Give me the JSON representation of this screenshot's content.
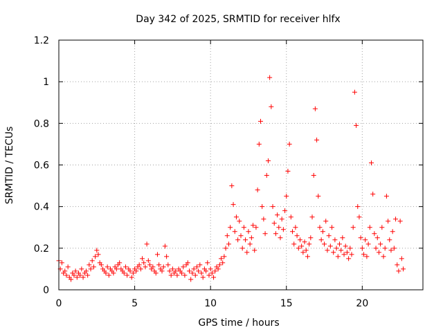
{
  "chart_data": {
    "type": "scatter",
    "title": "Day 342 of 2025, SRMTID for receiver hlfx",
    "xlabel": "GPS time / hours",
    "ylabel": "SRMTID / TECUs",
    "xlim": [
      0,
      24
    ],
    "ylim": [
      0,
      1.2
    ],
    "x_ticks": [
      0,
      5,
      10,
      15,
      20
    ],
    "x_tick_labels": [
      "0",
      "5",
      "10",
      "15",
      "20"
    ],
    "y_ticks": [
      0,
      0.2,
      0.4,
      0.6,
      0.8,
      1.0,
      1.2
    ],
    "y_tick_labels": [
      "0",
      "0.2",
      "0.4",
      "0.6",
      "0.8",
      "1",
      "1.2"
    ],
    "grid": true,
    "marker": "+",
    "color": "#ff0000",
    "series": [
      {
        "name": "SRMTID",
        "points": [
          [
            0.0,
            0.14
          ],
          [
            0.1,
            0.1
          ],
          [
            0.2,
            0.13
          ],
          [
            0.3,
            0.08
          ],
          [
            0.4,
            0.09
          ],
          [
            0.5,
            0.07
          ],
          [
            0.6,
            0.11
          ],
          [
            0.7,
            0.06
          ],
          [
            0.8,
            0.05
          ],
          [
            0.9,
            0.08
          ],
          [
            1.0,
            0.07
          ],
          [
            1.1,
            0.09
          ],
          [
            1.2,
            0.06
          ],
          [
            1.3,
            0.08
          ],
          [
            1.4,
            0.07
          ],
          [
            1.5,
            0.1
          ],
          [
            1.6,
            0.06
          ],
          [
            1.7,
            0.08
          ],
          [
            1.8,
            0.09
          ],
          [
            1.9,
            0.07
          ],
          [
            2.0,
            0.12
          ],
          [
            2.1,
            0.1
          ],
          [
            2.2,
            0.14
          ],
          [
            2.3,
            0.11
          ],
          [
            2.4,
            0.16
          ],
          [
            2.5,
            0.19
          ],
          [
            2.6,
            0.17
          ],
          [
            2.7,
            0.13
          ],
          [
            2.8,
            0.12
          ],
          [
            2.9,
            0.1
          ],
          [
            3.0,
            0.09
          ],
          [
            3.1,
            0.08
          ],
          [
            3.2,
            0.11
          ],
          [
            3.3,
            0.07
          ],
          [
            3.4,
            0.1
          ],
          [
            3.5,
            0.09
          ],
          [
            3.6,
            0.08
          ],
          [
            3.7,
            0.11
          ],
          [
            3.8,
            0.1
          ],
          [
            3.9,
            0.12
          ],
          [
            4.0,
            0.13
          ],
          [
            4.1,
            0.1
          ],
          [
            4.2,
            0.09
          ],
          [
            4.3,
            0.08
          ],
          [
            4.4,
            0.11
          ],
          [
            4.5,
            0.07
          ],
          [
            4.6,
            0.1
          ],
          [
            4.7,
            0.09
          ],
          [
            4.8,
            0.06
          ],
          [
            4.9,
            0.08
          ],
          [
            5.0,
            0.1
          ],
          [
            5.1,
            0.09
          ],
          [
            5.2,
            0.11
          ],
          [
            5.3,
            0.12
          ],
          [
            5.4,
            0.1
          ],
          [
            5.5,
            0.15
          ],
          [
            5.6,
            0.13
          ],
          [
            5.7,
            0.11
          ],
          [
            5.8,
            0.22
          ],
          [
            5.9,
            0.14
          ],
          [
            6.0,
            0.12
          ],
          [
            6.1,
            0.1
          ],
          [
            6.2,
            0.11
          ],
          [
            6.3,
            0.09
          ],
          [
            6.4,
            0.08
          ],
          [
            6.5,
            0.17
          ],
          [
            6.6,
            0.12
          ],
          [
            6.7,
            0.1
          ],
          [
            6.8,
            0.09
          ],
          [
            6.9,
            0.11
          ],
          [
            7.0,
            0.21
          ],
          [
            7.1,
            0.16
          ],
          [
            7.2,
            0.12
          ],
          [
            7.3,
            0.09
          ],
          [
            7.4,
            0.07
          ],
          [
            7.5,
            0.1
          ],
          [
            7.6,
            0.08
          ],
          [
            7.7,
            0.09
          ],
          [
            7.8,
            0.07
          ],
          [
            7.9,
            0.1
          ],
          [
            8.0,
            0.09
          ],
          [
            8.1,
            0.08
          ],
          [
            8.2,
            0.11
          ],
          [
            8.3,
            0.07
          ],
          [
            8.4,
            0.12
          ],
          [
            8.5,
            0.13
          ],
          [
            8.6,
            0.09
          ],
          [
            8.7,
            0.05
          ],
          [
            8.8,
            0.08
          ],
          [
            8.9,
            0.1
          ],
          [
            9.0,
            0.07
          ],
          [
            9.1,
            0.11
          ],
          [
            9.2,
            0.09
          ],
          [
            9.3,
            0.12
          ],
          [
            9.4,
            0.08
          ],
          [
            9.5,
            0.06
          ],
          [
            9.6,
            0.1
          ],
          [
            9.7,
            0.09
          ],
          [
            9.8,
            0.13
          ],
          [
            9.9,
            0.07
          ],
          [
            10.0,
            0.1
          ],
          [
            10.1,
            0.08
          ],
          [
            10.2,
            0.06
          ],
          [
            10.3,
            0.09
          ],
          [
            10.4,
            0.11
          ],
          [
            10.5,
            0.1
          ],
          [
            10.6,
            0.12
          ],
          [
            10.7,
            0.15
          ],
          [
            10.8,
            0.13
          ],
          [
            10.9,
            0.16
          ],
          [
            11.0,
            0.2
          ],
          [
            11.1,
            0.26
          ],
          [
            11.2,
            0.22
          ],
          [
            11.3,
            0.3
          ],
          [
            11.4,
            0.5
          ],
          [
            11.5,
            0.41
          ],
          [
            11.6,
            0.28
          ],
          [
            11.7,
            0.35
          ],
          [
            11.8,
            0.24
          ],
          [
            11.9,
            0.33
          ],
          [
            12.0,
            0.26
          ],
          [
            12.1,
            0.2
          ],
          [
            12.2,
            0.3
          ],
          [
            12.3,
            0.24
          ],
          [
            12.4,
            0.18
          ],
          [
            12.5,
            0.28
          ],
          [
            12.6,
            0.22
          ],
          [
            12.7,
            0.25
          ],
          [
            12.8,
            0.31
          ],
          [
            12.9,
            0.19
          ],
          [
            13.0,
            0.3
          ],
          [
            13.1,
            0.48
          ],
          [
            13.2,
            0.7
          ],
          [
            13.3,
            0.81
          ],
          [
            13.4,
            0.4
          ],
          [
            13.5,
            0.34
          ],
          [
            13.6,
            0.27
          ],
          [
            13.7,
            0.55
          ],
          [
            13.8,
            0.62
          ],
          [
            13.9,
            1.02
          ],
          [
            14.0,
            0.88
          ],
          [
            14.1,
            0.4
          ],
          [
            14.2,
            0.32
          ],
          [
            14.3,
            0.27
          ],
          [
            14.4,
            0.36
          ],
          [
            14.5,
            0.3
          ],
          [
            14.6,
            0.25
          ],
          [
            14.7,
            0.34
          ],
          [
            14.8,
            0.29
          ],
          [
            14.9,
            0.38
          ],
          [
            15.0,
            0.45
          ],
          [
            15.1,
            0.57
          ],
          [
            15.2,
            0.7
          ],
          [
            15.3,
            0.35
          ],
          [
            15.4,
            0.28
          ],
          [
            15.5,
            0.22
          ],
          [
            15.6,
            0.3
          ],
          [
            15.7,
            0.26
          ],
          [
            15.8,
            0.2
          ],
          [
            15.9,
            0.24
          ],
          [
            16.0,
            0.21
          ],
          [
            16.1,
            0.18
          ],
          [
            16.2,
            0.23
          ],
          [
            16.3,
            0.19
          ],
          [
            16.4,
            0.16
          ],
          [
            16.5,
            0.22
          ],
          [
            16.6,
            0.25
          ],
          [
            16.7,
            0.35
          ],
          [
            16.8,
            0.55
          ],
          [
            16.9,
            0.87
          ],
          [
            17.0,
            0.72
          ],
          [
            17.1,
            0.45
          ],
          [
            17.2,
            0.3
          ],
          [
            17.3,
            0.24
          ],
          [
            17.4,
            0.28
          ],
          [
            17.5,
            0.22
          ],
          [
            17.6,
            0.33
          ],
          [
            17.7,
            0.19
          ],
          [
            17.8,
            0.26
          ],
          [
            17.9,
            0.21
          ],
          [
            18.0,
            0.3
          ],
          [
            18.1,
            0.18
          ],
          [
            18.2,
            0.24
          ],
          [
            18.3,
            0.2
          ],
          [
            18.4,
            0.16
          ],
          [
            18.5,
            0.22
          ],
          [
            18.6,
            0.19
          ],
          [
            18.7,
            0.25
          ],
          [
            18.8,
            0.17
          ],
          [
            18.9,
            0.21
          ],
          [
            19.0,
            0.18
          ],
          [
            19.1,
            0.15
          ],
          [
            19.2,
            0.2
          ],
          [
            19.3,
            0.17
          ],
          [
            19.4,
            0.3
          ],
          [
            19.5,
            0.95
          ],
          [
            19.6,
            0.79
          ],
          [
            19.7,
            0.4
          ],
          [
            19.8,
            0.35
          ],
          [
            19.9,
            0.25
          ],
          [
            20.0,
            0.2
          ],
          [
            20.1,
            0.17
          ],
          [
            20.2,
            0.24
          ],
          [
            20.3,
            0.16
          ],
          [
            20.4,
            0.22
          ],
          [
            20.5,
            0.3
          ],
          [
            20.6,
            0.61
          ],
          [
            20.7,
            0.46
          ],
          [
            20.8,
            0.27
          ],
          [
            20.9,
            0.2
          ],
          [
            21.0,
            0.25
          ],
          [
            21.1,
            0.18
          ],
          [
            21.2,
            0.22
          ],
          [
            21.3,
            0.3
          ],
          [
            21.4,
            0.16
          ],
          [
            21.5,
            0.2
          ],
          [
            21.6,
            0.45
          ],
          [
            21.7,
            0.33
          ],
          [
            21.8,
            0.24
          ],
          [
            21.9,
            0.19
          ],
          [
            22.0,
            0.28
          ],
          [
            22.1,
            0.2
          ],
          [
            22.2,
            0.34
          ],
          [
            22.3,
            0.12
          ],
          [
            22.4,
            0.09
          ],
          [
            22.5,
            0.33
          ],
          [
            22.6,
            0.15
          ],
          [
            22.7,
            0.1
          ]
        ]
      }
    ]
  }
}
